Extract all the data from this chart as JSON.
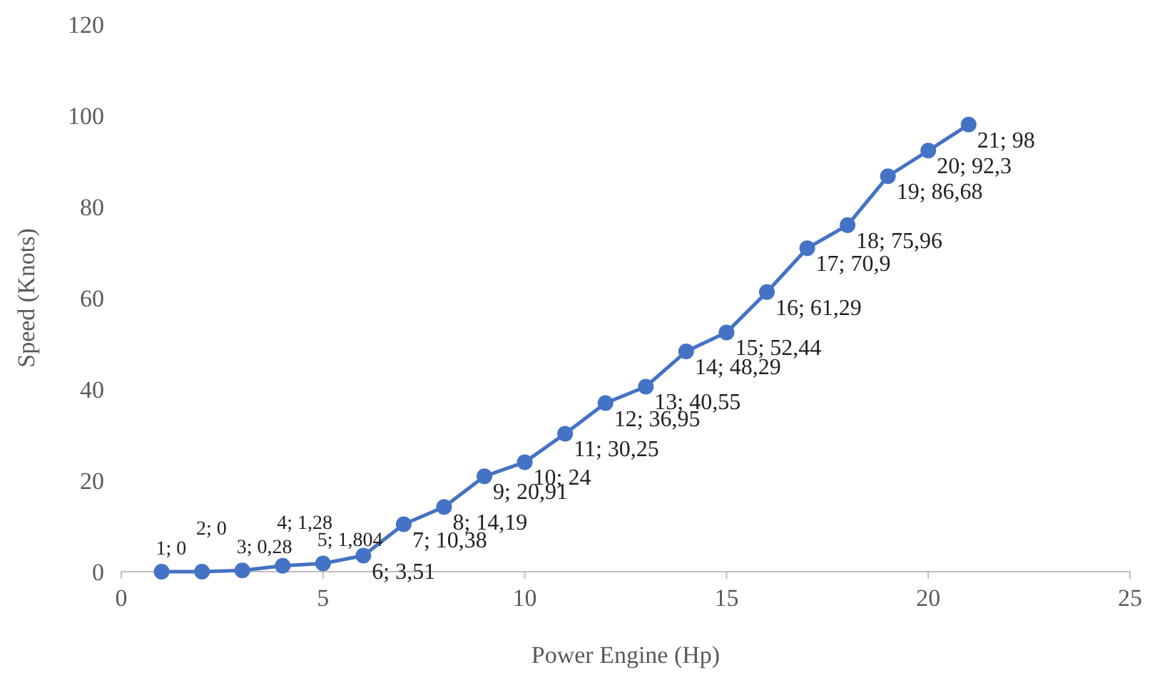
{
  "chart_data": {
    "type": "line",
    "xlabel": "Power Engine  (Hp)",
    "ylabel": "Speed (Knots)",
    "x": [
      1,
      2,
      3,
      4,
      5,
      6,
      7,
      8,
      9,
      10,
      11,
      12,
      13,
      14,
      15,
      16,
      17,
      18,
      19,
      20,
      21
    ],
    "series": [
      {
        "color": "#4472c4",
        "values": [
          0,
          0,
          0.28,
          1.28,
          1.804,
          3.51,
          10.38,
          14.19,
          20.91,
          24,
          30.25,
          36.95,
          40.55,
          48.29,
          52.44,
          61.29,
          70.9,
          75.96,
          86.68,
          92.3,
          98
        ],
        "value_labels": [
          "1; 0",
          "2; 0",
          "3; 0,28",
          "4; 1,28",
          "5; 1,804",
          "6; 3,51",
          "7; 10,38",
          "8; 14,19",
          "9; 20,91",
          "10; 24",
          "11; 30,25",
          "12; 36,95",
          "13; 40,55",
          "14; 48,29",
          "15; 52,44",
          "16; 61,29",
          "17; 70,9",
          "18; 75,96",
          "19; 86,68",
          "20; 92,3",
          "21; 98"
        ]
      }
    ],
    "xlim": [
      0,
      25
    ],
    "xticks": [
      0,
      5,
      10,
      15,
      20,
      25
    ],
    "ylim": [
      0,
      120
    ],
    "yticks": [
      0,
      20,
      40,
      60,
      80,
      100,
      120
    ],
    "marker": "circle",
    "line_style": "solid",
    "grid": false
  }
}
